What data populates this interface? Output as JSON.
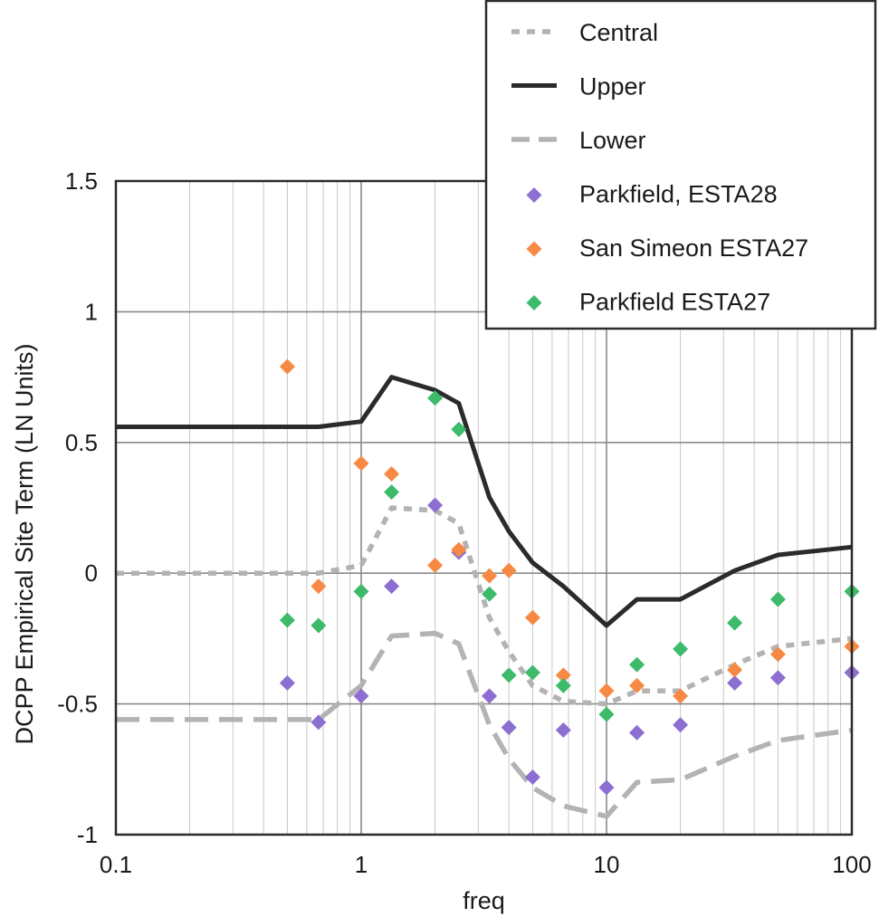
{
  "chart_data": {
    "type": "scatter",
    "xlabel": "freq",
    "ylabel": "DCPP Empirical Site Term (LN Units)",
    "xscale": "log",
    "xlim": [
      0.1,
      100
    ],
    "ylim": [
      -1,
      1.5
    ],
    "x_ticks": [
      {
        "value": 0.1,
        "label": "0.1"
      },
      {
        "value": 1,
        "label": "1"
      },
      {
        "value": 10,
        "label": "10"
      },
      {
        "value": 100,
        "label": "100"
      }
    ],
    "y_ticks": [
      {
        "value": 1.5,
        "label": "1.5"
      },
      {
        "value": 1,
        "label": "1"
      },
      {
        "value": 0.5,
        "label": "0.5"
      },
      {
        "value": 0,
        "label": "0"
      },
      {
        "value": -0.5,
        "label": "-0.5"
      },
      {
        "value": -1,
        "label": "-1"
      }
    ],
    "grid": true,
    "legend_position": "top-right",
    "lines": [
      {
        "name": "Central",
        "color": "#b3b3b3",
        "style": "dotted",
        "x": [
          0.1,
          0.5,
          0.67,
          1,
          1.33,
          2,
          2.5,
          3.33,
          4,
          5,
          6.67,
          10,
          13.3,
          20,
          33.3,
          50,
          100
        ],
        "y": [
          0,
          0,
          0,
          0.03,
          0.25,
          0.24,
          0.19,
          -0.17,
          -0.3,
          -0.43,
          -0.49,
          -0.5,
          -0.45,
          -0.45,
          -0.35,
          -0.28,
          -0.25
        ]
      },
      {
        "name": "Upper",
        "color": "#2b2b2b",
        "style": "solid",
        "x": [
          0.1,
          0.5,
          0.67,
          1,
          1.33,
          2,
          2.5,
          3.33,
          4,
          5,
          6.67,
          10,
          13.3,
          20,
          33.3,
          50,
          100
        ],
        "y": [
          0.56,
          0.56,
          0.56,
          0.58,
          0.75,
          0.7,
          0.65,
          0.29,
          0.16,
          0.04,
          -0.05,
          -0.2,
          -0.1,
          -0.1,
          0.01,
          0.07,
          0.1
        ]
      },
      {
        "name": "Lower",
        "color": "#b3b3b3",
        "style": "dashed",
        "x": [
          0.1,
          0.5,
          0.67,
          1,
          1.33,
          2,
          2.5,
          3.33,
          4,
          5,
          6.67,
          10,
          13.3,
          20,
          33.3,
          50,
          100
        ],
        "y": [
          -0.56,
          -0.56,
          -0.56,
          -0.43,
          -0.24,
          -0.23,
          -0.27,
          -0.58,
          -0.71,
          -0.82,
          -0.89,
          -0.93,
          -0.8,
          -0.79,
          -0.7,
          -0.64,
          -0.6
        ]
      }
    ],
    "series": [
      {
        "name": "Parkfield, ESTA28",
        "color": "#8c6fd1",
        "marker": "diamond",
        "x": [
          0.5,
          0.67,
          1,
          1.33,
          2,
          2.5,
          3.33,
          4,
          5,
          6.67,
          10,
          13.3,
          20,
          33.3,
          50,
          100
        ],
        "y": [
          -0.42,
          -0.57,
          -0.47,
          -0.05,
          0.26,
          0.08,
          -0.47,
          -0.59,
          -0.78,
          -0.6,
          -0.82,
          -0.61,
          -0.58,
          -0.42,
          -0.4,
          -0.38
        ]
      },
      {
        "name": "San Simeon ESTA27",
        "color": "#f68a44",
        "marker": "diamond",
        "x": [
          0.5,
          0.67,
          1,
          1.33,
          2,
          2.5,
          3.33,
          4,
          5,
          6.67,
          10,
          13.3,
          20,
          33.3,
          50,
          100
        ],
        "y": [
          0.79,
          -0.05,
          0.42,
          0.38,
          0.03,
          0.09,
          -0.01,
          0.01,
          -0.17,
          -0.39,
          -0.45,
          -0.43,
          -0.47,
          -0.37,
          -0.31,
          -0.28
        ]
      },
      {
        "name": "Parkfield ESTA27",
        "color": "#3dba6a",
        "marker": "diamond",
        "x": [
          0.5,
          0.67,
          1,
          1.33,
          2,
          2.5,
          3.33,
          4,
          5,
          6.67,
          10,
          13.3,
          20,
          33.3,
          50,
          100
        ],
        "y": [
          -0.18,
          -0.2,
          -0.07,
          0.31,
          0.67,
          0.55,
          -0.08,
          -0.39,
          -0.38,
          -0.43,
          -0.54,
          -0.35,
          -0.29,
          -0.19,
          -0.1,
          -0.07
        ]
      }
    ]
  }
}
